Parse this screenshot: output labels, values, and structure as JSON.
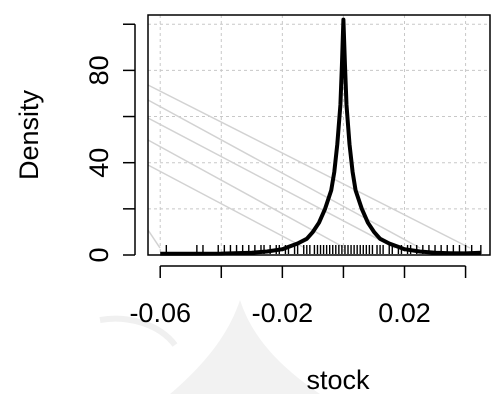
{
  "chart_data": {
    "type": "line",
    "title": "",
    "xlabel": "stock",
    "ylabel": "Density",
    "xlim": [
      -0.064,
      0.048
    ],
    "ylim": [
      0,
      104
    ],
    "grid": true,
    "x_ticks": [
      -0.06,
      -0.02,
      0.02
    ],
    "x_tick_labels": [
      "-0.06",
      "-0.02",
      "0.02"
    ],
    "x_minor_ticks": [
      -0.04,
      0.0,
      0.04
    ],
    "y_ticks": [
      0,
      40,
      80
    ],
    "y_tick_labels": [
      "0",
      "40",
      "80"
    ],
    "y_minor_ticks": [
      20,
      60,
      100
    ],
    "series": [
      {
        "x": [
          -0.06,
          -0.05,
          -0.04,
          -0.03,
          -0.025,
          -0.02,
          -0.018,
          -0.015,
          -0.012,
          -0.01,
          -0.008,
          -0.006,
          -0.004,
          -0.003,
          -0.002,
          -0.001,
          -0.0005,
          0.0,
          0.0005,
          0.001,
          0.002,
          0.003,
          0.004,
          0.006,
          0.008,
          0.01,
          0.012,
          0.015,
          0.018,
          0.02,
          0.025,
          0.03,
          0.035,
          0.04,
          0.045
        ],
        "y": [
          0.5,
          0.5,
          0.6,
          1.0,
          1.5,
          2.5,
          3.5,
          5,
          7,
          10,
          14,
          20,
          28,
          36,
          48,
          65,
          82,
          102,
          82,
          65,
          48,
          36,
          28,
          20,
          14,
          10,
          7,
          5,
          3.5,
          2.5,
          1.5,
          1.0,
          0.8,
          0.7,
          1.0
        ]
      }
    ],
    "rug_x": [
      -0.058,
      -0.048,
      -0.046,
      -0.041,
      -0.039,
      -0.037,
      -0.035,
      -0.033,
      -0.031,
      -0.029,
      -0.027,
      -0.026,
      -0.024,
      -0.022,
      -0.021,
      -0.019,
      -0.018,
      -0.016,
      -0.015,
      -0.013,
      -0.012,
      -0.011,
      -0.0095,
      -0.0085,
      -0.0075,
      -0.0065,
      -0.0055,
      -0.0045,
      -0.0035,
      -0.0025,
      -0.0015,
      -0.0005,
      0.0005,
      0.0015,
      0.0025,
      0.0035,
      0.0045,
      0.0055,
      0.0065,
      0.0075,
      0.0085,
      0.0095,
      0.011,
      0.012,
      0.013,
      0.015,
      0.016,
      0.018,
      0.019,
      0.021,
      0.022,
      0.024,
      0.026,
      0.028,
      0.03,
      0.032,
      0.034,
      0.036,
      0.038,
      0.04,
      0.042,
      0.045
    ]
  }
}
